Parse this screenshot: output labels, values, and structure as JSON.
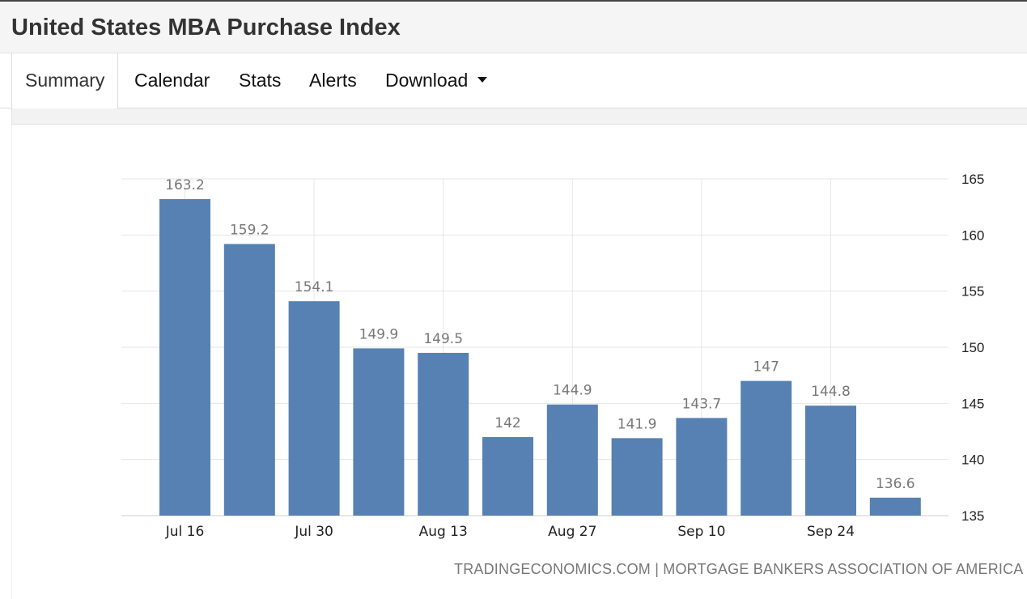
{
  "header": {
    "title": "United States MBA Purchase Index"
  },
  "tabs": [
    {
      "label": "Summary",
      "active": true
    },
    {
      "label": "Calendar",
      "active": false
    },
    {
      "label": "Stats",
      "active": false
    },
    {
      "label": "Alerts",
      "active": false
    },
    {
      "label": "Download",
      "active": false,
      "dropdown": true
    }
  ],
  "source": "TRADINGECONOMICS.COM | MORTGAGE BANKERS ASSOCIATION OF AMERICA",
  "colors": {
    "bar": "#5781b3",
    "grid": "#e6e6e6",
    "label": "#777777"
  },
  "chart_data": {
    "type": "bar",
    "categories": [
      "Jul 16",
      "",
      "Jul 30",
      "",
      "Aug 13",
      "",
      "Aug 27",
      "",
      "Sep 10",
      "",
      "Sep 24",
      ""
    ],
    "values": [
      163.2,
      159.2,
      154.1,
      149.9,
      149.5,
      142,
      144.9,
      141.9,
      143.7,
      147,
      144.8,
      136.6
    ],
    "value_labels": [
      "163.2",
      "159.2",
      "154.1",
      "149.9",
      "149.5",
      "142",
      "144.9",
      "141.9",
      "143.7",
      "147",
      "144.8",
      "136.6"
    ],
    "x_tick_labels": [
      "Jul 16",
      "Jul 30",
      "Aug 13",
      "Aug 27",
      "Sep 10",
      "Sep 24"
    ],
    "y_ticks": [
      135,
      140,
      145,
      150,
      155,
      160,
      165
    ],
    "ylim": [
      135,
      165
    ],
    "y_axis_side": "right",
    "grid": true,
    "title": "",
    "xlabel": "",
    "ylabel": ""
  }
}
